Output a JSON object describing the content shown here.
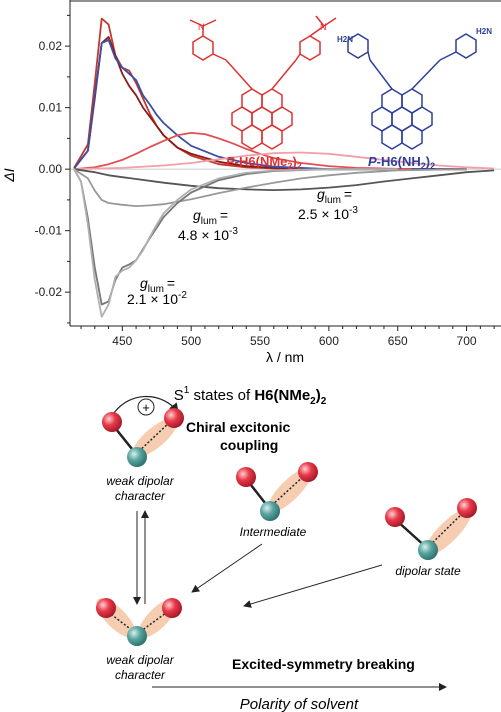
{
  "chart_data": {
    "type": "line",
    "xlabel": "λ / nm",
    "ylabel": "ΔI",
    "xlim": [
      412,
      725
    ],
    "ylim": [
      -0.0255,
      0.0275
    ],
    "xticks": [
      "450",
      "500",
      "550",
      "600",
      "650",
      "700"
    ],
    "yticks": [
      "0.02",
      "0.01",
      "0.00",
      "-0.01",
      "-0.02"
    ],
    "series": [
      {
        "color": "#c0392b",
        "x": [
          415,
          425,
          430,
          435,
          440,
          445,
          450,
          455,
          460,
          465,
          470,
          475,
          480,
          490,
          500,
          520,
          540,
          560,
          600,
          650,
          700
        ],
        "y": [
          0.0002,
          0.004,
          0.014,
          0.0245,
          0.0235,
          0.0185,
          0.0165,
          0.016,
          0.014,
          0.0115,
          0.009,
          0.007,
          0.0055,
          0.0035,
          0.0022,
          0.0008,
          0.0003,
          0.0001,
          0,
          0,
          0
        ]
      },
      {
        "color": "#8b1a1a",
        "x": [
          415,
          425,
          430,
          435,
          440,
          445,
          450,
          455,
          460,
          465,
          470,
          475,
          480,
          490,
          500,
          520,
          540,
          560,
          600,
          650,
          700
        ],
        "y": [
          0.0001,
          0.003,
          0.0115,
          0.0205,
          0.0215,
          0.0185,
          0.0155,
          0.0135,
          0.012,
          0.01,
          0.0085,
          0.007,
          0.0055,
          0.0035,
          0.0025,
          0.0012,
          0.0005,
          0.0002,
          0,
          0,
          0
        ]
      },
      {
        "color": "#3a4fa8",
        "x": [
          415,
          425,
          430,
          435,
          440,
          445,
          450,
          455,
          460,
          465,
          470,
          475,
          480,
          490,
          500,
          520,
          540,
          560,
          600,
          650,
          700
        ],
        "y": [
          0.0001,
          0.003,
          0.012,
          0.0205,
          0.021,
          0.018,
          0.0165,
          0.0155,
          0.0145,
          0.012,
          0.0105,
          0.0088,
          0.0075,
          0.0055,
          0.0038,
          0.002,
          0.001,
          0.0004,
          0,
          0,
          0
        ]
      },
      {
        "color": "#e05050",
        "x": [
          415,
          430,
          440,
          450,
          460,
          470,
          480,
          490,
          500,
          510,
          520,
          530,
          540,
          550,
          560,
          580,
          600,
          620,
          640,
          660
        ],
        "y": [
          0,
          0.0003,
          0.0008,
          0.0015,
          0.0025,
          0.0036,
          0.0046,
          0.0055,
          0.0059,
          0.0057,
          0.005,
          0.0042,
          0.0033,
          0.0025,
          0.0018,
          0.001,
          0.0005,
          0.0002,
          0.0001,
          0
        ]
      },
      {
        "color": "#f0a0a8",
        "x": [
          415,
          450,
          480,
          500,
          520,
          540,
          560,
          580,
          600,
          620,
          640,
          660,
          680,
          700,
          720
        ],
        "y": [
          0,
          0.0002,
          0.0006,
          0.001,
          0.0016,
          0.0022,
          0.0026,
          0.0027,
          0.0025,
          0.002,
          0.0015,
          0.001,
          0.0006,
          0.0003,
          0.0001
        ]
      },
      {
        "color": "#555555",
        "x": [
          415,
          430,
          440,
          460,
          480,
          500,
          520,
          540,
          560,
          580,
          600,
          620,
          640,
          660,
          680,
          700,
          720
        ],
        "y": [
          0,
          -0.0005,
          -0.001,
          -0.0016,
          -0.0022,
          -0.0027,
          -0.0031,
          -0.0033,
          -0.0034,
          -0.0033,
          -0.003,
          -0.0026,
          -0.002,
          -0.0015,
          -0.001,
          -0.0005,
          -0.0002
        ]
      },
      {
        "color": "#999999",
        "x": [
          415,
          425,
          430,
          435,
          440,
          450,
          460,
          470,
          480,
          490,
          500,
          510,
          520,
          540,
          560,
          580,
          600,
          620,
          650,
          700
        ],
        "y": [
          0,
          -0.0015,
          -0.0035,
          -0.005,
          -0.0055,
          -0.0058,
          -0.006,
          -0.0059,
          -0.0057,
          -0.0053,
          -0.0049,
          -0.0044,
          -0.0039,
          -0.003,
          -0.0022,
          -0.0015,
          -0.001,
          -0.0006,
          -0.0002,
          0
        ]
      },
      {
        "color": "#777777",
        "x": [
          415,
          420,
          425,
          430,
          435,
          440,
          445,
          450,
          455,
          460,
          465,
          470,
          475,
          480,
          490,
          500,
          520,
          540,
          560,
          600,
          650
        ],
        "y": [
          0,
          -0.002,
          -0.008,
          -0.016,
          -0.022,
          -0.0215,
          -0.018,
          -0.016,
          -0.0155,
          -0.0148,
          -0.013,
          -0.0112,
          -0.0095,
          -0.0078,
          -0.0055,
          -0.0038,
          -0.0018,
          -0.0008,
          -0.0003,
          0,
          0
        ]
      },
      {
        "color": "#b0b0b0",
        "x": [
          415,
          420,
          425,
          430,
          435,
          440,
          445,
          450,
          455,
          460,
          465,
          470,
          475,
          480,
          490,
          500,
          520,
          540,
          560,
          600,
          650
        ],
        "y": [
          0,
          -0.002,
          -0.009,
          -0.018,
          -0.024,
          -0.022,
          -0.0175,
          -0.0165,
          -0.016,
          -0.0148,
          -0.0132,
          -0.011,
          -0.009,
          -0.0072,
          -0.005,
          -0.0033,
          -0.0015,
          -0.0006,
          -0.0002,
          0,
          0
        ]
      }
    ],
    "annotations": [
      {
        "g": "g",
        "sub": "lum",
        "eq": "=",
        "value": "2.1 × 10",
        "exp": "-2"
      },
      {
        "g": "g",
        "sub": "lum",
        "eq": "=",
        "value": "4.8 × 10",
        "exp": "-3"
      },
      {
        "g": "g",
        "sub": "lum",
        "eq": "=",
        "value": "2.5 × 10",
        "exp": "-3"
      }
    ],
    "molecules": [
      {
        "prefix": "P",
        "dash": "-",
        "name": "H6(NMe",
        "sub": "2",
        "close": ")",
        "sub2": "2",
        "color": "#e03030",
        "substituent": ""
      },
      {
        "prefix": "P",
        "dash": "-",
        "name": "H6(NH",
        "sub": "2",
        "close": ")",
        "sub2": "2",
        "color": "#2c3e9a",
        "substituent": "H2N"
      }
    ]
  },
  "diagram": {
    "header_prefix": "S",
    "header_sup": "1",
    "header_mid": " states of ",
    "header_bold": "H6(NMe",
    "header_sub": "2",
    "header_close": ")",
    "header_sub2": "2",
    "plus_sign": "+",
    "chiral_line1": "Chiral excitonic",
    "chiral_line2": "coupling",
    "weak_line1": "weak dipolar",
    "weak_line2": "character",
    "intermediate": "Intermediate",
    "dipolar_state": "dipolar state",
    "weak2_line1": "weak dipolar",
    "weak2_line2": "character",
    "esb": "Excited-symmetry breaking",
    "polarity": "Polarity of solvent"
  }
}
